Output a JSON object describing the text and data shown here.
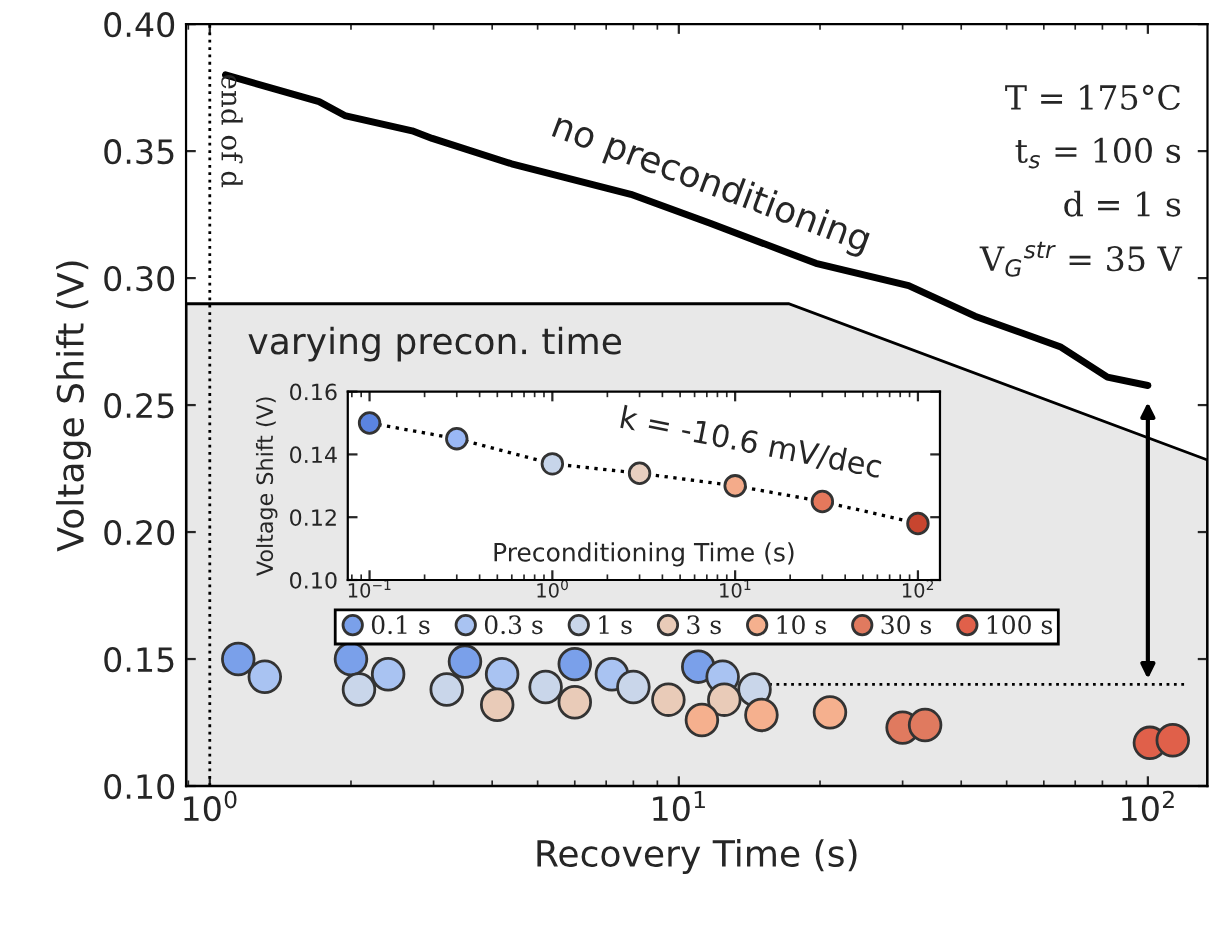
{
  "chart_data": [
    {
      "type": "scatter",
      "xlabel": "Recovery Time (s)",
      "ylabel": "Voltage Shift (V)",
      "log": "x",
      "xlim": [
        0.89,
        134
      ],
      "xticks": [
        {
          "value": 1,
          "label": "10$^{0}$"
        },
        {
          "value": 10,
          "label": "10$^{1}$"
        },
        {
          "value": 100,
          "label": "10$^{2}$"
        }
      ],
      "ylim": [
        0.1,
        0.4
      ],
      "yticks": [
        {
          "value": 0.1,
          "label": "0.10"
        },
        {
          "value": 0.15,
          "label": "0.15"
        },
        {
          "value": 0.2,
          "label": "0.20"
        },
        {
          "value": 0.25,
          "label": "0.25"
        },
        {
          "value": 0.3,
          "label": "0.30"
        },
        {
          "value": 0.35,
          "label": "0.35"
        },
        {
          "value": 0.4,
          "label": "0.40"
        }
      ],
      "grid": false,
      "legend": "bottom",
      "series": [
        {
          "type": "line",
          "name": "no preconditioning",
          "color": "#000000",
          "line_style": "solid",
          "x": [
            1.08,
            1.71,
            1.94,
            2.7,
            2.98,
            4.4,
            7.9,
            11.7,
            19.6,
            30.9,
            42.8,
            65,
            82,
            100
          ],
          "values": [
            0.38,
            0.3695,
            0.364,
            0.358,
            0.355,
            0.345,
            0.333,
            0.3215,
            0.3058,
            0.297,
            0.285,
            0.273,
            0.261,
            0.2577
          ]
        },
        {
          "type": "line",
          "color": "#000000",
          "line_style": "dotted",
          "x": [
            13,
            120
          ],
          "values": [
            0.14,
            0.14
          ]
        },
        {
          "name": "0.1 s",
          "color": "#7aa0ea",
          "marker": "circle",
          "x": [
            1.15,
            2,
            3.5,
            6,
            11
          ],
          "values": [
            0.15,
            0.15,
            0.149,
            0.148,
            0.147
          ]
        },
        {
          "name": "0.3 s",
          "color": "#a9c3f2",
          "marker": "circle",
          "x": [
            1.31,
            2.4,
            4.2,
            7.2,
            12.4
          ],
          "values": [
            0.143,
            0.144,
            0.144,
            0.144,
            0.143
          ]
        },
        {
          "name": "1 s",
          "color": "#c9d6ea",
          "marker": "circle",
          "x": [
            2.08,
            3.2,
            5.2,
            8,
            14.5
          ],
          "values": [
            0.138,
            0.138,
            0.139,
            0.139,
            0.138
          ]
        },
        {
          "name": "3 s",
          "color": "#e9cbb8",
          "marker": "circle",
          "x": [
            4.1,
            6,
            9.5,
            12.5
          ],
          "values": [
            0.132,
            0.133,
            0.134,
            0.134
          ]
        },
        {
          "name": "10 s",
          "color": "#f5b08e",
          "marker": "circle",
          "x": [
            11.2,
            15,
            21
          ],
          "values": [
            0.126,
            0.128,
            0.129
          ]
        },
        {
          "name": "30 s",
          "color": "#e07a5f",
          "marker": "circle",
          "x": [
            30,
            33.5
          ],
          "values": [
            0.123,
            0.124
          ]
        },
        {
          "name": "100 s",
          "color": "#e0604a",
          "marker": "circle",
          "x": [
            101,
            113
          ],
          "values": [
            0.117,
            0.118
          ]
        }
      ],
      "ref_lines": [
        {
          "axis": "x",
          "value": 1,
          "label": "end of d",
          "color": "#000000",
          "line_style": "dotted"
        }
      ],
      "annotations": [
        "varying precon. time",
        "T = 175°C",
        "t$_{s}$ = 100 s",
        "d = 1 s",
        "V$_{G}$$^{str}$ = 35 V"
      ]
    },
    {
      "type": "line",
      "xlabel": "Preconditioning Time (s)",
      "ylabel": "Voltage Shift (V)",
      "log": "x",
      "xlim": [
        0.076,
        132
      ],
      "xticks": [
        {
          "value": 0.1,
          "label": "10$^{−1}$"
        },
        {
          "value": 1,
          "label": "10$^{0}$"
        },
        {
          "value": 10,
          "label": "10$^{1}$"
        },
        {
          "value": 100,
          "label": "10$^{2}$"
        }
      ],
      "ylim": [
        0.1,
        0.16
      ],
      "yticks": [
        {
          "value": 0.1,
          "label": "0.10"
        },
        {
          "value": 0.12,
          "label": "0.12"
        },
        {
          "value": 0.14,
          "label": "0.14"
        },
        {
          "value": 0.16,
          "label": "0.16"
        }
      ],
      "grid": false,
      "marker": "circle",
      "line_style": "dotted",
      "x": [
        0.1,
        0.3,
        1,
        3,
        10,
        30,
        100
      ],
      "values": [
        0.15,
        0.145,
        0.137,
        0.134,
        0.13,
        0.125,
        0.118
      ],
      "colors": [
        "#5b84e0",
        "#9ab8f5",
        "#c7d5ea",
        "#e8cfc0",
        "#f4ab8a",
        "#e5785c",
        "#c8452f"
      ],
      "annotations": [
        "k = -10.6 mV/dec"
      ]
    }
  ]
}
